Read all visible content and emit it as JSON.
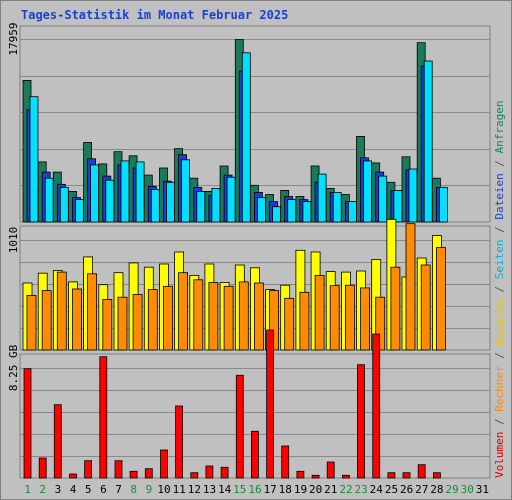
{
  "page": {
    "title": "Tages-Statistik im Monat Februar 2025"
  },
  "legend": {
    "parts": [
      {
        "text": "Volumen",
        "color": "#d60000"
      },
      {
        "text": " / ",
        "color": "#555555"
      },
      {
        "text": "Rechner",
        "color": "#ff8c00"
      },
      {
        "text": " / ",
        "color": "#555555"
      },
      {
        "text": "Besuche",
        "color": "#e8c800"
      },
      {
        "text": " / ",
        "color": "#555555"
      },
      {
        "text": "Seiten",
        "color": "#00b0d8"
      },
      {
        "text": " / ",
        "color": "#555555"
      },
      {
        "text": "Dateien",
        "color": "#1c3fd3"
      },
      {
        "text": " / ",
        "color": "#555555"
      },
      {
        "text": "Anfragen",
        "color": "#0a8a5a"
      }
    ]
  },
  "chart_data": [
    {
      "type": "bar",
      "panel": "requests",
      "ytick_label": "17959",
      "ytick_value": 17959,
      "categories": [
        "1",
        "2",
        "3",
        "4",
        "5",
        "6",
        "7",
        "8",
        "9",
        "10",
        "11",
        "12",
        "13",
        "14",
        "15",
        "16",
        "17",
        "18",
        "19",
        "20",
        "21",
        "22",
        "23",
        "24",
        "25",
        "26",
        "27",
        "28",
        "29",
        "30",
        "31"
      ],
      "weekend_days": [
        "1",
        "2",
        "8",
        "9",
        "15",
        "16",
        "22",
        "23",
        "29",
        "30"
      ],
      "series": [
        {
          "name": "Anfragen",
          "color": "#1a7a5a",
          "values": [
            13900,
            5900,
            4900,
            3000,
            7800,
            5700,
            6900,
            6500,
            4600,
            5300,
            7200,
            4300,
            3000,
            5500,
            17900,
            3600,
            2700,
            3100,
            2500,
            5500,
            3300,
            2700,
            8400,
            5800,
            3900,
            6400,
            17600,
            4300,
            null,
            null,
            null
          ]
        },
        {
          "name": "Dateien",
          "color": "#1c3fd3",
          "values": [
            11000,
            4900,
            3700,
            2400,
            6200,
            4500,
            5600,
            5300,
            3500,
            4000,
            6600,
            3400,
            2600,
            4600,
            14800,
            2900,
            2000,
            2500,
            2200,
            3900,
            2900,
            2000,
            6300,
            4900,
            3100,
            5100,
            15300,
            3400,
            null,
            null,
            null
          ]
        },
        {
          "name": "Seiten",
          "color": "#00e0ff",
          "values": [
            12300,
            4300,
            3400,
            2200,
            5600,
            4100,
            6000,
            5900,
            3200,
            3900,
            6100,
            3000,
            3300,
            4400,
            16600,
            2400,
            1500,
            2200,
            2000,
            4700,
            2900,
            2000,
            6000,
            4500,
            3100,
            5200,
            15800,
            3400,
            null,
            null,
            null
          ]
        }
      ]
    },
    {
      "type": "bar",
      "panel": "visits",
      "ytick_label": "1010",
      "ytick_value": 1010,
      "categories": [
        "1",
        "2",
        "3",
        "4",
        "5",
        "6",
        "7",
        "8",
        "9",
        "10",
        "11",
        "12",
        "13",
        "14",
        "15",
        "16",
        "17",
        "18",
        "19",
        "20",
        "21",
        "22",
        "23",
        "24",
        "25",
        "26",
        "27",
        "28",
        "29",
        "30",
        "31"
      ],
      "series": [
        {
          "name": "Besuche",
          "color": "#ffff00",
          "values": [
            615,
            705,
            730,
            625,
            855,
            600,
            710,
            800,
            760,
            790,
            900,
            685,
            790,
            620,
            780,
            755,
            555,
            595,
            915,
            900,
            720,
            715,
            725,
            830,
            1200,
            670,
            845,
            1050,
            null,
            null,
            null
          ]
        },
        {
          "name": "Rechner",
          "color": "#ff8c00",
          "values": [
            500,
            545,
            715,
            560,
            700,
            465,
            485,
            510,
            555,
            585,
            710,
            645,
            620,
            585,
            625,
            615,
            545,
            475,
            530,
            685,
            590,
            595,
            570,
            485,
            760,
            1160,
            780,
            940,
            null,
            null,
            null
          ]
        }
      ]
    },
    {
      "type": "bar",
      "panel": "volume",
      "ytick_label": "8.25 GB",
      "ytick_value": 8.25,
      "series": [
        {
          "name": "Volumen",
          "color": "#ff0000",
          "values": [
            8.2,
            1.5,
            5.5,
            0.3,
            1.3,
            9.1,
            1.3,
            0.5,
            0.7,
            2.1,
            5.4,
            0.4,
            0.9,
            0.8,
            7.7,
            3.5,
            11.1,
            2.4,
            0.5,
            0.2,
            1.2,
            0.2,
            8.5,
            10.8,
            0.4,
            0.4,
            1.0,
            0.4,
            null,
            null,
            null
          ]
        }
      ]
    }
  ]
}
